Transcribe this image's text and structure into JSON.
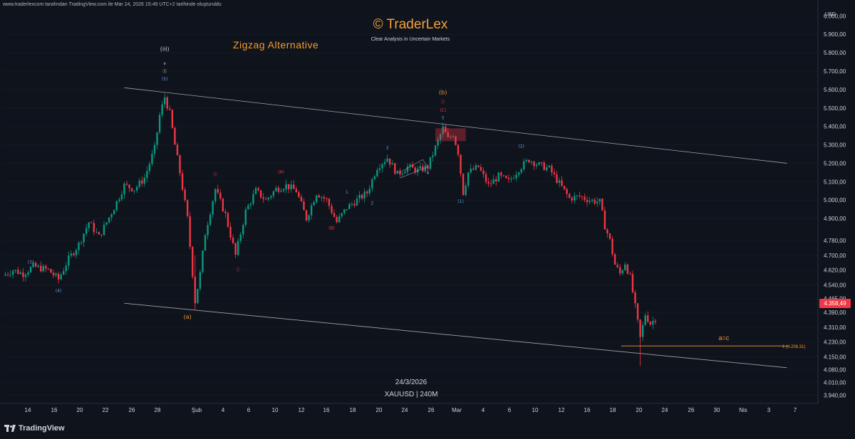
{
  "header": {
    "attribution": "www.traderlexcom tarafından TradingView.com ile Mar 24, 2026 15:49 UTC+2 tarihinde oluşturuldu",
    "brand": "© TraderLex",
    "tagline": "Clear Analysis in Uncertain Markets",
    "alt_title": "Zigzag Alternative"
  },
  "stamp": {
    "date": "24/3/2026",
    "symbol": "XAUUSD | 240M"
  },
  "footer": {
    "logo_text": "TradingView"
  },
  "price_axis": {
    "currency": "USD",
    "ticks": [
      "6.000,00",
      "5.900,00",
      "5.800,00",
      "5.700,00",
      "5.600,00",
      "5.500,00",
      "5.400,00",
      "5.300,00",
      "5.200,00",
      "5.100,00",
      "5.000,00",
      "4.900,00",
      "4.780,00",
      "4.700,00",
      "4.620,00",
      "4.540,00",
      "4.465,00",
      "4.390,00",
      "4.310,00",
      "4.230,00",
      "4.150,00",
      "4.080,00",
      "4.010,00",
      "3.940,00"
    ],
    "current_price": "4.358,49"
  },
  "colors": {
    "background": "#0f131c",
    "up": "#089981",
    "down": "#f23645",
    "orange": "#f59b2b",
    "blue": "#5b9cf6",
    "channel": "#c8c8c8"
  },
  "chart_data": {
    "type": "candlestick",
    "symbol": "XAUUSD",
    "timeframe": "240M",
    "x_ticks": [
      "14",
      "16",
      "20",
      "22",
      "26",
      "28",
      "Şub",
      "4",
      "6",
      "10",
      "12",
      "16",
      "18",
      "20",
      "24",
      "26",
      "Mar",
      "4",
      "6",
      "10",
      "12",
      "16",
      "18",
      "20",
      "24",
      "26",
      "30",
      "Nis",
      "3",
      "7"
    ],
    "ylim": [
      3900,
      6040
    ],
    "close_path": [
      {
        "x": 0,
        "y": 4590
      },
      {
        "x": 4,
        "y": 4620
      },
      {
        "x": 8,
        "y": 4600
      },
      {
        "x": 12,
        "y": 4640
      },
      {
        "x": 18,
        "y": 4620
      },
      {
        "x": 22,
        "y": 4570
      },
      {
        "x": 26,
        "y": 4680
      },
      {
        "x": 30,
        "y": 4760
      },
      {
        "x": 34,
        "y": 4880
      },
      {
        "x": 38,
        "y": 4800
      },
      {
        "x": 44,
        "y": 4960
      },
      {
        "x": 48,
        "y": 5080
      },
      {
        "x": 52,
        "y": 5060
      },
      {
        "x": 56,
        "y": 5120
      },
      {
        "x": 60,
        "y": 5280
      },
      {
        "x": 62,
        "y": 5460
      },
      {
        "x": 64,
        "y": 5560
      },
      {
        "x": 66,
        "y": 5470
      },
      {
        "x": 68,
        "y": 5300
      },
      {
        "x": 70,
        "y": 5150
      },
      {
        "x": 73,
        "y": 4900
      },
      {
        "x": 76,
        "y": 4450
      },
      {
        "x": 78,
        "y": 4600
      },
      {
        "x": 80,
        "y": 4820
      },
      {
        "x": 84,
        "y": 5060
      },
      {
        "x": 88,
        "y": 4920
      },
      {
        "x": 92,
        "y": 4700
      },
      {
        "x": 96,
        "y": 4940
      },
      {
        "x": 100,
        "y": 5050
      },
      {
        "x": 104,
        "y": 5000
      },
      {
        "x": 108,
        "y": 5060
      },
      {
        "x": 112,
        "y": 5080
      },
      {
        "x": 116,
        "y": 5050
      },
      {
        "x": 120,
        "y": 4900
      },
      {
        "x": 124,
        "y": 5040
      },
      {
        "x": 128,
        "y": 5000
      },
      {
        "x": 132,
        "y": 4880
      },
      {
        "x": 136,
        "y": 4960
      },
      {
        "x": 140,
        "y": 5000
      },
      {
        "x": 144,
        "y": 5040
      },
      {
        "x": 148,
        "y": 5180
      },
      {
        "x": 152,
        "y": 5230
      },
      {
        "x": 156,
        "y": 5140
      },
      {
        "x": 160,
        "y": 5180
      },
      {
        "x": 164,
        "y": 5160
      },
      {
        "x": 168,
        "y": 5180
      },
      {
        "x": 172,
        "y": 5320
      },
      {
        "x": 174,
        "y": 5390
      },
      {
        "x": 176,
        "y": 5330
      },
      {
        "x": 178,
        "y": 5360
      },
      {
        "x": 180,
        "y": 5260
      },
      {
        "x": 182,
        "y": 5040
      },
      {
        "x": 184,
        "y": 5150
      },
      {
        "x": 188,
        "y": 5180
      },
      {
        "x": 192,
        "y": 5080
      },
      {
        "x": 196,
        "y": 5130
      },
      {
        "x": 200,
        "y": 5100
      },
      {
        "x": 204,
        "y": 5170
      },
      {
        "x": 208,
        "y": 5220
      },
      {
        "x": 212,
        "y": 5190
      },
      {
        "x": 216,
        "y": 5170
      },
      {
        "x": 220,
        "y": 5090
      },
      {
        "x": 224,
        "y": 5010
      },
      {
        "x": 228,
        "y": 5020
      },
      {
        "x": 232,
        "y": 5000
      },
      {
        "x": 236,
        "y": 4990
      },
      {
        "x": 238,
        "y": 4860
      },
      {
        "x": 240,
        "y": 4780
      },
      {
        "x": 242,
        "y": 4650
      },
      {
        "x": 244,
        "y": 4600
      },
      {
        "x": 246,
        "y": 4660
      },
      {
        "x": 248,
        "y": 4580
      },
      {
        "x": 250,
        "y": 4420
      },
      {
        "x": 252,
        "y": 4250
      },
      {
        "x": 254,
        "y": 4380
      },
      {
        "x": 256,
        "y": 4330
      },
      {
        "x": 258,
        "y": 4358
      }
    ],
    "channel": {
      "upper": [
        {
          "x": 48,
          "y": 5610
        },
        {
          "x": 310,
          "y": 5200
        }
      ],
      "lower": [
        {
          "x": 48,
          "y": 4440
        },
        {
          "x": 310,
          "y": 4090
        }
      ]
    },
    "target_level": {
      "value": 4208.31,
      "label": "1 (4.208,31)",
      "note": "a=c"
    },
    "annotations": [
      {
        "text": "(iii)",
        "x": 64,
        "y": 5810,
        "color": "#d1d4dc"
      },
      {
        "text": "v",
        "x": 64,
        "y": 5735,
        "color": "#d1d4dc"
      },
      {
        "text": "ⓢ",
        "x": 64,
        "y": 5690,
        "color": "#d1d4dc"
      },
      {
        "text": "(5)",
        "x": 64,
        "y": 5650,
        "color": "#5b9cf6"
      },
      {
        "text": "(3)",
        "x": 11,
        "y": 4655,
        "color": "#5b9cf6"
      },
      {
        "text": "(4)",
        "x": 22,
        "y": 4500,
        "color": "#5b9cf6"
      },
      {
        "text": "(a)",
        "x": 73,
        "y": 4355,
        "color": "#f59b2b"
      },
      {
        "text": "ⓑ",
        "x": 84,
        "y": 5130,
        "color": "#f23645"
      },
      {
        "text": "ⓒ",
        "x": 93,
        "y": 4615,
        "color": "#f23645"
      },
      {
        "text": "(A)",
        "x": 110,
        "y": 5145,
        "color": "#f23645"
      },
      {
        "text": "(B)",
        "x": 130,
        "y": 4840,
        "color": "#f23645"
      },
      {
        "text": "1",
        "x": 136,
        "y": 5035,
        "color": "#5b9cf6"
      },
      {
        "text": "2",
        "x": 146,
        "y": 4975,
        "color": "#5b9cf6"
      },
      {
        "text": "3",
        "x": 152,
        "y": 5275,
        "color": "#5b9cf6"
      },
      {
        "text": "4",
        "x": 168,
        "y": 5140,
        "color": "#5b9cf6"
      },
      {
        "text": "(b)",
        "x": 174,
        "y": 5575,
        "color": "#f59b2b"
      },
      {
        "text": "ⓨ",
        "x": 174,
        "y": 5525,
        "color": "#f23645"
      },
      {
        "text": "(C)",
        "x": 174,
        "y": 5480,
        "color": "#f23645"
      },
      {
        "text": "5",
        "x": 174,
        "y": 5440,
        "color": "#5b9cf6"
      },
      {
        "text": "(1)",
        "x": 181,
        "y": 4985,
        "color": "#5b9cf6"
      },
      {
        "text": "(2)",
        "x": 205,
        "y": 5285,
        "color": "#5b9cf6"
      }
    ]
  }
}
